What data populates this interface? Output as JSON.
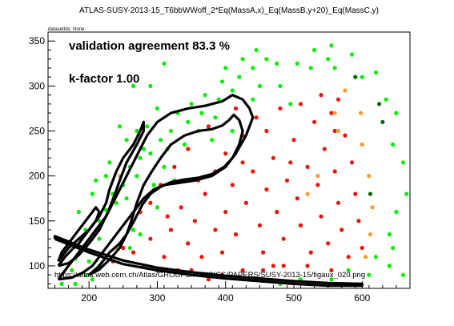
{
  "chart_data": {
    "type": "scatter",
    "title": "ATLAS-SUSY-2013-15_T6bbWWoff_2*Eq(MassA,x)_Eq(MassB,y+20)_Eq(MassC,y)",
    "subtitle": "datasetIds: None",
    "annotations": {
      "agreement": "validation agreement 83.3 %",
      "kfactor": "k-factor 1.00",
      "url": "https://atlas.web.cern.ch/Atlas/GROUPS/PHYSICS/PAPERS/SUSY-2013-15/figaux_020.png"
    },
    "xlim": [
      140,
      670
    ],
    "ylim": [
      75,
      360
    ],
    "xticks": [
      200,
      300,
      400,
      500,
      600
    ],
    "yticks": [
      100,
      150,
      200,
      250,
      300,
      350
    ],
    "colors": {
      "green": "#00ee00",
      "red": "#ee1100",
      "orange": "#ff9933",
      "darkgreen": "#006600",
      "line": "#000000"
    },
    "series": [
      {
        "key": "green",
        "points": [
          [
            160,
            80
          ],
          [
            180,
            80
          ],
          [
            195,
            90
          ],
          [
            175,
            95
          ],
          [
            180,
            108
          ],
          [
            200,
            105
          ],
          [
            195,
            140
          ],
          [
            215,
            150
          ],
          [
            225,
            162
          ],
          [
            240,
            170
          ],
          [
            225,
            200
          ],
          [
            230,
            215
          ],
          [
            235,
            180
          ],
          [
            250,
            190
          ],
          [
            260,
            210
          ],
          [
            255,
            175
          ],
          [
            270,
            200
          ],
          [
            275,
            220
          ],
          [
            280,
            230
          ],
          [
            290,
            225
          ],
          [
            295,
            190
          ],
          [
            300,
            165
          ],
          [
            305,
            240
          ],
          [
            310,
            210
          ],
          [
            320,
            250
          ],
          [
            315,
            230
          ],
          [
            340,
            235
          ],
          [
            325,
            195
          ],
          [
            345,
            260
          ],
          [
            360,
            250
          ],
          [
            330,
            270
          ],
          [
            350,
            280
          ],
          [
            365,
            270
          ],
          [
            385,
            265
          ],
          [
            370,
            290
          ],
          [
            390,
            285
          ],
          [
            395,
            305
          ],
          [
            410,
            295
          ],
          [
            400,
            320
          ],
          [
            420,
            310
          ],
          [
            425,
            330
          ],
          [
            440,
            320
          ],
          [
            445,
            340
          ],
          [
            460,
            330
          ],
          [
            475,
            325
          ],
          [
            480,
            300
          ],
          [
            505,
            325
          ],
          [
            525,
            320
          ],
          [
            530,
            340
          ],
          [
            550,
            330
          ],
          [
            555,
            345
          ],
          [
            560,
            320
          ],
          [
            585,
            335
          ],
          [
            600,
            310
          ],
          [
            620,
            315
          ],
          [
            635,
            285
          ],
          [
            650,
            270
          ],
          [
            645,
            235
          ],
          [
            660,
            215
          ],
          [
            665,
            180
          ],
          [
            650,
            160
          ],
          [
            640,
            135
          ],
          [
            645,
            120
          ],
          [
            640,
            100
          ],
          [
            660,
            90
          ],
          [
            620,
            110
          ],
          [
            580,
            95
          ],
          [
            555,
            85
          ],
          [
            530,
            80
          ],
          [
            510,
            85
          ],
          [
            495,
            280
          ],
          [
            440,
            285
          ],
          [
            300,
            275
          ],
          [
            290,
            300
          ],
          [
            310,
            325
          ],
          [
            265,
            140
          ],
          [
            270,
            250
          ],
          [
            285,
            255
          ],
          [
            255,
            240
          ],
          [
            245,
            255
          ],
          [
            380,
            240
          ],
          [
            410,
            250
          ],
          [
            215,
            130
          ],
          [
            450,
            300
          ],
          [
            610,
            90
          ],
          [
            480,
            80
          ],
          [
            185,
            160
          ],
          [
            205,
            180
          ],
          [
            210,
            195
          ],
          [
            275,
            135
          ],
          [
            215,
            100
          ],
          [
            205,
            85
          ],
          [
            265,
            300
          ],
          [
            260,
            120
          ]
        ]
      },
      {
        "key": "red",
        "points": [
          [
            235,
            105
          ],
          [
            250,
            120
          ],
          [
            265,
            115
          ],
          [
            280,
            100
          ],
          [
            290,
            130
          ],
          [
            310,
            110
          ],
          [
            320,
            140
          ],
          [
            330,
            95
          ],
          [
            345,
            125
          ],
          [
            355,
            150
          ],
          [
            365,
            110
          ],
          [
            370,
            180
          ],
          [
            385,
            140
          ],
          [
            400,
            160
          ],
          [
            395,
            115
          ],
          [
            410,
            190
          ],
          [
            415,
            135
          ],
          [
            430,
            170
          ],
          [
            440,
            205
          ],
          [
            450,
            145
          ],
          [
            455,
            115
          ],
          [
            460,
            185
          ],
          [
            470,
            220
          ],
          [
            475,
            160
          ],
          [
            485,
            130
          ],
          [
            490,
            195
          ],
          [
            500,
            240
          ],
          [
            505,
            175
          ],
          [
            510,
            145
          ],
          [
            520,
            210
          ],
          [
            525,
            115
          ],
          [
            530,
            260
          ],
          [
            535,
            190
          ],
          [
            540,
            155
          ],
          [
            545,
            230
          ],
          [
            550,
            125
          ],
          [
            555,
            270
          ],
          [
            560,
            205
          ],
          [
            565,
            170
          ],
          [
            570,
            140
          ],
          [
            575,
            245
          ],
          [
            580,
            110
          ],
          [
            585,
            215
          ],
          [
            590,
            180
          ],
          [
            595,
            150
          ],
          [
            600,
            120
          ],
          [
            385,
            205
          ],
          [
            400,
            225
          ],
          [
            425,
            245
          ],
          [
            445,
            265
          ],
          [
            460,
            250
          ],
          [
            480,
            275
          ],
          [
            510,
            280
          ],
          [
            540,
            290
          ],
          [
            305,
            190
          ],
          [
            325,
            210
          ],
          [
            345,
            230
          ],
          [
            360,
            195
          ],
          [
            335,
            165
          ],
          [
            350,
            95
          ],
          [
            375,
            85
          ],
          [
            395,
            90
          ],
          [
            425,
            95
          ],
          [
            455,
            95
          ],
          [
            485,
            100
          ],
          [
            520,
            100
          ],
          [
            555,
            95
          ],
          [
            300,
            95
          ],
          [
            275,
            160
          ],
          [
            290,
            170
          ],
          [
            315,
            155
          ],
          [
            425,
            215
          ],
          [
            560,
            250
          ],
          [
            565,
            285
          ],
          [
            495,
            215
          ],
          [
            470,
            100
          ],
          [
            415,
            275
          ],
          [
            375,
            255
          ]
        ]
      },
      {
        "key": "orange",
        "points": [
          [
            245,
            200
          ],
          [
            240,
            120
          ],
          [
            560,
            270
          ],
          [
            575,
            295
          ],
          [
            565,
            250
          ],
          [
            600,
            235
          ],
          [
            610,
            200
          ],
          [
            615,
            165
          ],
          [
            612,
            135
          ],
          [
            598,
            270
          ],
          [
            535,
            200
          ],
          [
            520,
            180
          ],
          [
            605,
            110
          ]
        ]
      },
      {
        "key": "darkgreen",
        "points": [
          [
            590,
            310
          ],
          [
            625,
            280
          ],
          [
            630,
            260
          ],
          [
            612,
            180
          ]
        ]
      }
    ],
    "contours": [
      [
        [
          155,
          105
        ],
        [
          160,
          115
        ],
        [
          170,
          125
        ],
        [
          180,
          135
        ],
        [
          195,
          150
        ],
        [
          205,
          160
        ],
        [
          210,
          165
        ],
        [
          215,
          160
        ],
        [
          210,
          150
        ],
        [
          200,
          140
        ],
        [
          185,
          130
        ],
        [
          170,
          120
        ],
        [
          160,
          110
        ],
        [
          155,
          105
        ]
      ],
      [
        [
          155,
          100
        ],
        [
          165,
          110
        ],
        [
          175,
          118
        ],
        [
          185,
          125
        ],
        [
          195,
          135
        ],
        [
          205,
          145
        ],
        [
          215,
          155
        ],
        [
          225,
          170
        ],
        [
          230,
          185
        ],
        [
          240,
          205
        ],
        [
          250,
          220
        ],
        [
          265,
          235
        ],
        [
          275,
          250
        ],
        [
          280,
          260
        ],
        [
          280,
          250
        ],
        [
          270,
          235
        ],
        [
          255,
          215
        ],
        [
          245,
          195
        ],
        [
          238,
          180
        ],
        [
          228,
          160
        ],
        [
          215,
          140
        ],
        [
          200,
          125
        ],
        [
          185,
          112
        ],
        [
          170,
          103
        ],
        [
          155,
          100
        ]
      ],
      [
        [
          155,
          85
        ],
        [
          165,
          95
        ],
        [
          180,
          110
        ],
        [
          195,
          125
        ],
        [
          210,
          140
        ],
        [
          225,
          155
        ],
        [
          235,
          170
        ],
        [
          245,
          185
        ],
        [
          255,
          200
        ],
        [
          265,
          215
        ],
        [
          275,
          230
        ],
        [
          285,
          245
        ],
        [
          300,
          260
        ],
        [
          320,
          270
        ],
        [
          345,
          275
        ],
        [
          370,
          278
        ],
        [
          395,
          283
        ],
        [
          410,
          290
        ],
        [
          425,
          285
        ],
        [
          435,
          275
        ],
        [
          440,
          265
        ],
        [
          430,
          245
        ],
        [
          415,
          225
        ],
        [
          400,
          210
        ],
        [
          380,
          200
        ],
        [
          355,
          195
        ],
        [
          330,
          192
        ],
        [
          310,
          190
        ],
        [
          295,
          185
        ],
        [
          280,
          175
        ],
        [
          265,
          160
        ],
        [
          250,
          145
        ],
        [
          235,
          130
        ],
        [
          220,
          115
        ],
        [
          205,
          100
        ],
        [
          190,
          92
        ],
        [
          175,
          87
        ],
        [
          155,
          85
        ]
      ],
      [
        [
          200,
          90
        ],
        [
          215,
          100
        ],
        [
          230,
          115
        ],
        [
          245,
          125
        ],
        [
          255,
          135
        ],
        [
          262,
          150
        ],
        [
          270,
          170
        ],
        [
          280,
          190
        ],
        [
          292,
          205
        ],
        [
          305,
          220
        ],
        [
          320,
          235
        ],
        [
          340,
          245
        ],
        [
          360,
          250
        ],
        [
          380,
          252
        ],
        [
          395,
          256
        ],
        [
          405,
          262
        ],
        [
          412,
          268
        ],
        [
          420,
          262
        ],
        [
          425,
          250
        ],
        [
          420,
          235
        ],
        [
          410,
          220
        ],
        [
          398,
          210
        ],
        [
          380,
          202
        ],
        [
          360,
          198
        ],
        [
          340,
          196
        ],
        [
          320,
          193
        ],
        [
          305,
          188
        ],
        [
          290,
          180
        ],
        [
          278,
          168
        ],
        [
          266,
          150
        ],
        [
          255,
          135
        ],
        [
          245,
          120
        ],
        [
          230,
          107
        ],
        [
          215,
          96
        ],
        [
          200,
          90
        ]
      ],
      [
        [
          150,
          130
        ],
        [
          200,
          115
        ],
        [
          250,
          102
        ],
        [
          300,
          95
        ],
        [
          350,
          90
        ],
        [
          400,
          86
        ],
        [
          450,
          83
        ],
        [
          500,
          80
        ],
        [
          550,
          78
        ],
        [
          600,
          78
        ],
        [
          600,
          80
        ],
        [
          550,
          81
        ],
        [
          500,
          83
        ],
        [
          450,
          86
        ],
        [
          400,
          89
        ],
        [
          350,
          93
        ],
        [
          300,
          98
        ],
        [
          250,
          106
        ],
        [
          200,
          118
        ],
        [
          150,
          133
        ],
        [
          150,
          130
        ]
      ]
    ]
  }
}
